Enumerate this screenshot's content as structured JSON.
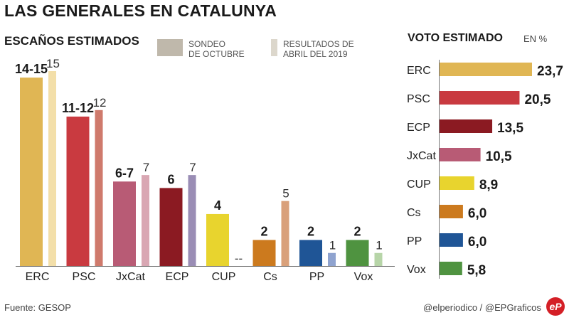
{
  "title": "LAS GENERALES EN CATALUNYA",
  "source": "Fuente: GESOP",
  "credits": "@elperiodico / @EPGraficos",
  "logo_text": "eP",
  "chart_data": [
    {
      "type": "bar",
      "title": "ESCAÑOS ESTIMADOS",
      "xlabel": "",
      "ylabel": "",
      "ylim": [
        0,
        15
      ],
      "grid": false,
      "legend": [
        {
          "label_line1": "SONDEO",
          "label_line2": "DE OCTUBRE",
          "color": "#bfb8ab"
        },
        {
          "label_line1": "RESULTADOS DE",
          "label_line2": "ABRIL DEL 2019",
          "color": "#dcd7cc"
        }
      ],
      "legend_position": "top",
      "categories": [
        "ERC",
        "PSC",
        "JxCat",
        "ECP",
        "CUP",
        "Cs",
        "PP",
        "Vox"
      ],
      "series": [
        {
          "name": "Sondeo de octubre",
          "values": [
            14.5,
            11.5,
            6.5,
            6,
            4,
            2,
            2,
            2
          ],
          "labels": [
            "14-15",
            "11-12",
            "6-7",
            "6",
            "4",
            "2",
            "2",
            "2"
          ],
          "colors": [
            "#e0b654",
            "#c93a40",
            "#b85b75",
            "#8b1a22",
            "#e8d42e",
            "#cc7a1e",
            "#1f5596",
            "#4f9340"
          ]
        },
        {
          "name": "Resultados de abril del 2019",
          "values": [
            15,
            12,
            7,
            7,
            0,
            5,
            1,
            1
          ],
          "labels": [
            "15",
            "12",
            "7",
            "7",
            "--",
            "5",
            "1",
            "1"
          ],
          "colors": [
            "#f3dfa9",
            "#cf7a6c",
            "#d9a7b3",
            "#9a8db5",
            "#ffffff",
            "#d9a07a",
            "#8fa3cf",
            "#b7d5a8"
          ]
        }
      ]
    },
    {
      "type": "bar",
      "orientation": "horizontal",
      "title": "VOTO ESTIMADO",
      "unit": "EN %",
      "xlim": [
        0,
        23.7
      ],
      "grid": false,
      "categories": [
        "ERC",
        "PSC",
        "ECP",
        "JxCat",
        "CUP",
        "Cs",
        "PP",
        "Vox"
      ],
      "values": [
        23.7,
        20.5,
        13.5,
        10.5,
        8.9,
        6.0,
        6.0,
        5.8
      ],
      "labels": [
        "23,7",
        "20,5",
        "13,5",
        "10,5",
        "8,9",
        "6,0",
        "6,0",
        "5,8"
      ],
      "colors": [
        "#e0b654",
        "#c93a40",
        "#8b1a22",
        "#b85b75",
        "#e8d42e",
        "#cc7a1e",
        "#1f5596",
        "#4f9340"
      ]
    }
  ]
}
